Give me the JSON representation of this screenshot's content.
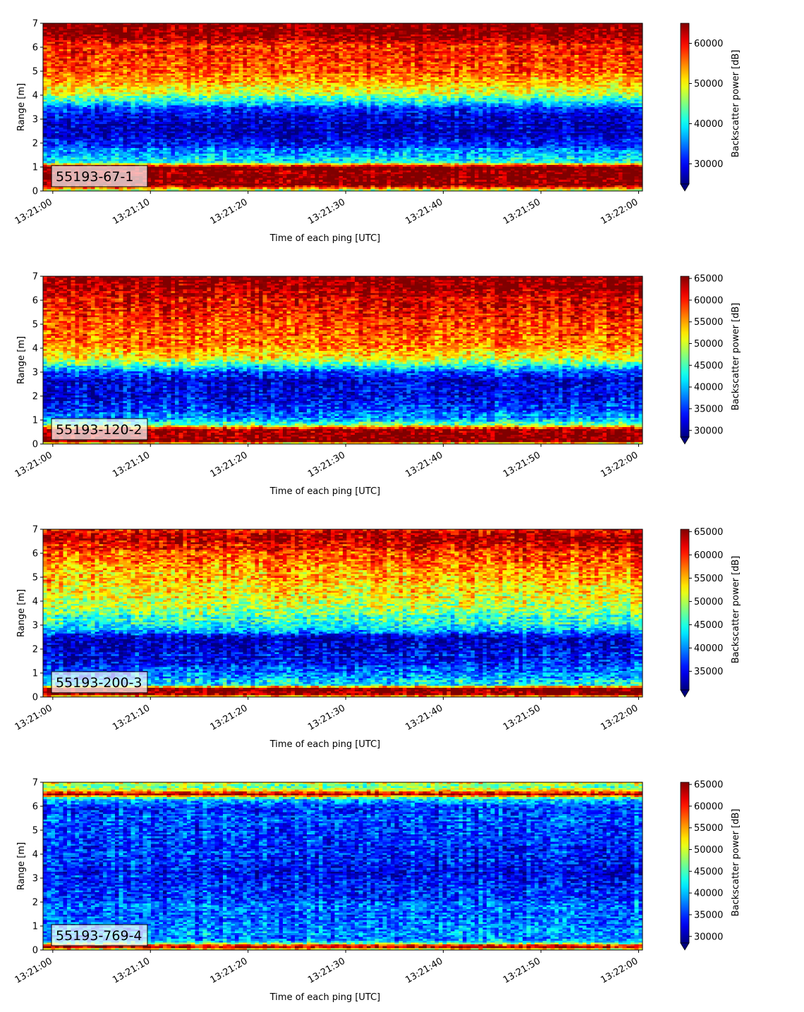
{
  "chart_data": [
    {
      "type": "heatmap",
      "label": "55193-67-1",
      "xlabel": "Time of each ping [UTC]",
      "ylabel": "Range [m]",
      "colorbar_label": "Backscatter power [dB]",
      "colormap": "jet",
      "xlim": [
        "13:21:00",
        "13:22:00"
      ],
      "ylim": [
        0,
        7
      ],
      "x_ticks": [
        "13:21:00",
        "13:21:10",
        "13:21:20",
        "13:21:30",
        "13:21:40",
        "13:21:50",
        "13:22:00"
      ],
      "y_ticks": [
        "0",
        "1",
        "2",
        "3",
        "4",
        "5",
        "6",
        "7"
      ],
      "clim": [
        25000,
        65000
      ],
      "colorbar_ticks": [
        "30000",
        "40000",
        "50000",
        "60000"
      ],
      "profile": {
        "range_m": [
          0,
          0.25,
          1.0,
          1.2,
          1.5,
          2.0,
          2.5,
          3.0,
          3.4,
          3.8,
          4.2,
          5.0,
          6.0,
          6.6,
          7.0
        ],
        "value": [
          45000,
          65000,
          65000,
          40000,
          37000,
          30000,
          27000,
          28000,
          32000,
          42000,
          50000,
          57000,
          58000,
          64000,
          65000
        ]
      }
    },
    {
      "type": "heatmap",
      "label": "55193-120-2",
      "xlabel": "Time of each ping [UTC]",
      "ylabel": "Range [m]",
      "colorbar_label": "Backscatter power [dB]",
      "colormap": "jet",
      "xlim": [
        "13:21:00",
        "13:22:00"
      ],
      "ylim": [
        0,
        7
      ],
      "x_ticks": [
        "13:21:00",
        "13:21:10",
        "13:21:20",
        "13:21:30",
        "13:21:40",
        "13:21:50",
        "13:22:00"
      ],
      "y_ticks": [
        "0",
        "1",
        "2",
        "3",
        "4",
        "5",
        "6",
        "7"
      ],
      "clim": [
        28500,
        65500
      ],
      "colorbar_ticks": [
        "30000",
        "35000",
        "40000",
        "45000",
        "50000",
        "55000",
        "60000",
        "65000"
      ],
      "profile": {
        "range_m": [
          0,
          0.1,
          0.6,
          0.8,
          1.1,
          1.5,
          2.0,
          2.6,
          3.0,
          3.3,
          3.6,
          4.2,
          5.0,
          6.0,
          6.5,
          7.0
        ],
        "value": [
          45000,
          65500,
          65500,
          46000,
          38000,
          34000,
          33000,
          32000,
          36000,
          45000,
          52000,
          57000,
          59000,
          61000,
          64500,
          65500
        ]
      }
    },
    {
      "type": "heatmap",
      "label": "55193-200-3",
      "xlabel": "Time of each ping [UTC]",
      "ylabel": "Range [m]",
      "colorbar_label": "Backscatter power [dB]",
      "colormap": "jet",
      "xlim": [
        "13:21:00",
        "13:22:00"
      ],
      "ylim": [
        0,
        7
      ],
      "x_ticks": [
        "13:21:00",
        "13:21:10",
        "13:21:20",
        "13:21:30",
        "13:21:40",
        "13:21:50",
        "13:22:00"
      ],
      "y_ticks": [
        "0",
        "1",
        "2",
        "3",
        "4",
        "5",
        "6",
        "7"
      ],
      "clim": [
        31000,
        65500
      ],
      "colorbar_ticks": [
        "35000",
        "40000",
        "45000",
        "50000",
        "55000",
        "60000",
        "65000"
      ],
      "profile": {
        "range_m": [
          0,
          0.1,
          0.35,
          0.5,
          0.8,
          1.2,
          2.0,
          2.5,
          2.8,
          3.2,
          3.8,
          4.5,
          5.5,
          6.3,
          6.7,
          7.0
        ],
        "value": [
          50000,
          65500,
          65500,
          45000,
          40000,
          37000,
          34000,
          34500,
          42000,
          46000,
          51000,
          54000,
          56000,
          61000,
          64500,
          60000
        ]
      }
    },
    {
      "type": "heatmap",
      "label": "55193-769-4",
      "xlabel": "Time of each ping [UTC]",
      "ylabel": "Range [m]",
      "colorbar_label": "Backscatter power [dB]",
      "colormap": "jet",
      "xlim": [
        "13:21:00",
        "13:22:00"
      ],
      "ylim": [
        0,
        7
      ],
      "x_ticks": [
        "13:21:00",
        "13:21:10",
        "13:21:20",
        "13:21:30",
        "13:21:40",
        "13:21:50",
        "13:22:00"
      ],
      "y_ticks": [
        "0",
        "1",
        "2",
        "3",
        "4",
        "5",
        "6",
        "7"
      ],
      "clim": [
        28500,
        65500
      ],
      "colorbar_ticks": [
        "30000",
        "35000",
        "40000",
        "45000",
        "50000",
        "55000",
        "60000",
        "65000"
      ],
      "profile": {
        "range_m": [
          0,
          0.15,
          0.3,
          0.5,
          1.0,
          2.0,
          3.0,
          4.0,
          5.0,
          6.0,
          6.3,
          6.5,
          6.7,
          6.85,
          7.0
        ],
        "value": [
          48000,
          65500,
          42000,
          38000,
          37000,
          36000,
          33500,
          35000,
          36000,
          35000,
          40000,
          64000,
          50000,
          44000,
          52000
        ]
      }
    }
  ]
}
